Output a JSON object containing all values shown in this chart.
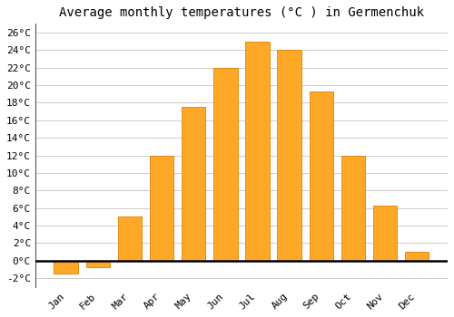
{
  "title": "Average monthly temperatures (°C ) in Germenchuk",
  "months": [
    "Jan",
    "Feb",
    "Mar",
    "Apr",
    "May",
    "Jun",
    "Jul",
    "Aug",
    "Sep",
    "Oct",
    "Nov",
    "Dec"
  ],
  "values": [
    -1.5,
    -0.8,
    5.0,
    12.0,
    17.5,
    22.0,
    25.0,
    24.0,
    19.3,
    12.0,
    6.3,
    1.0
  ],
  "bar_color": "#FFA726",
  "bar_edge_color": "#E08000",
  "ylim": [
    -3.0,
    27.0
  ],
  "yticks": [
    -2,
    0,
    2,
    4,
    6,
    8,
    10,
    12,
    14,
    16,
    18,
    20,
    22,
    24,
    26
  ],
  "ytick_labels": [
    "-2°C",
    "0°C",
    "2°C",
    "4°C",
    "6°C",
    "8°C",
    "10°C",
    "12°C",
    "14°C",
    "16°C",
    "18°C",
    "20°C",
    "22°C",
    "24°C",
    "26°C"
  ],
  "background_color": "#ffffff",
  "grid_color": "#cccccc",
  "title_fontsize": 10,
  "tick_fontsize": 8,
  "zero_line_color": "#000000",
  "left_spine_color": "#555555",
  "bar_width": 0.75
}
